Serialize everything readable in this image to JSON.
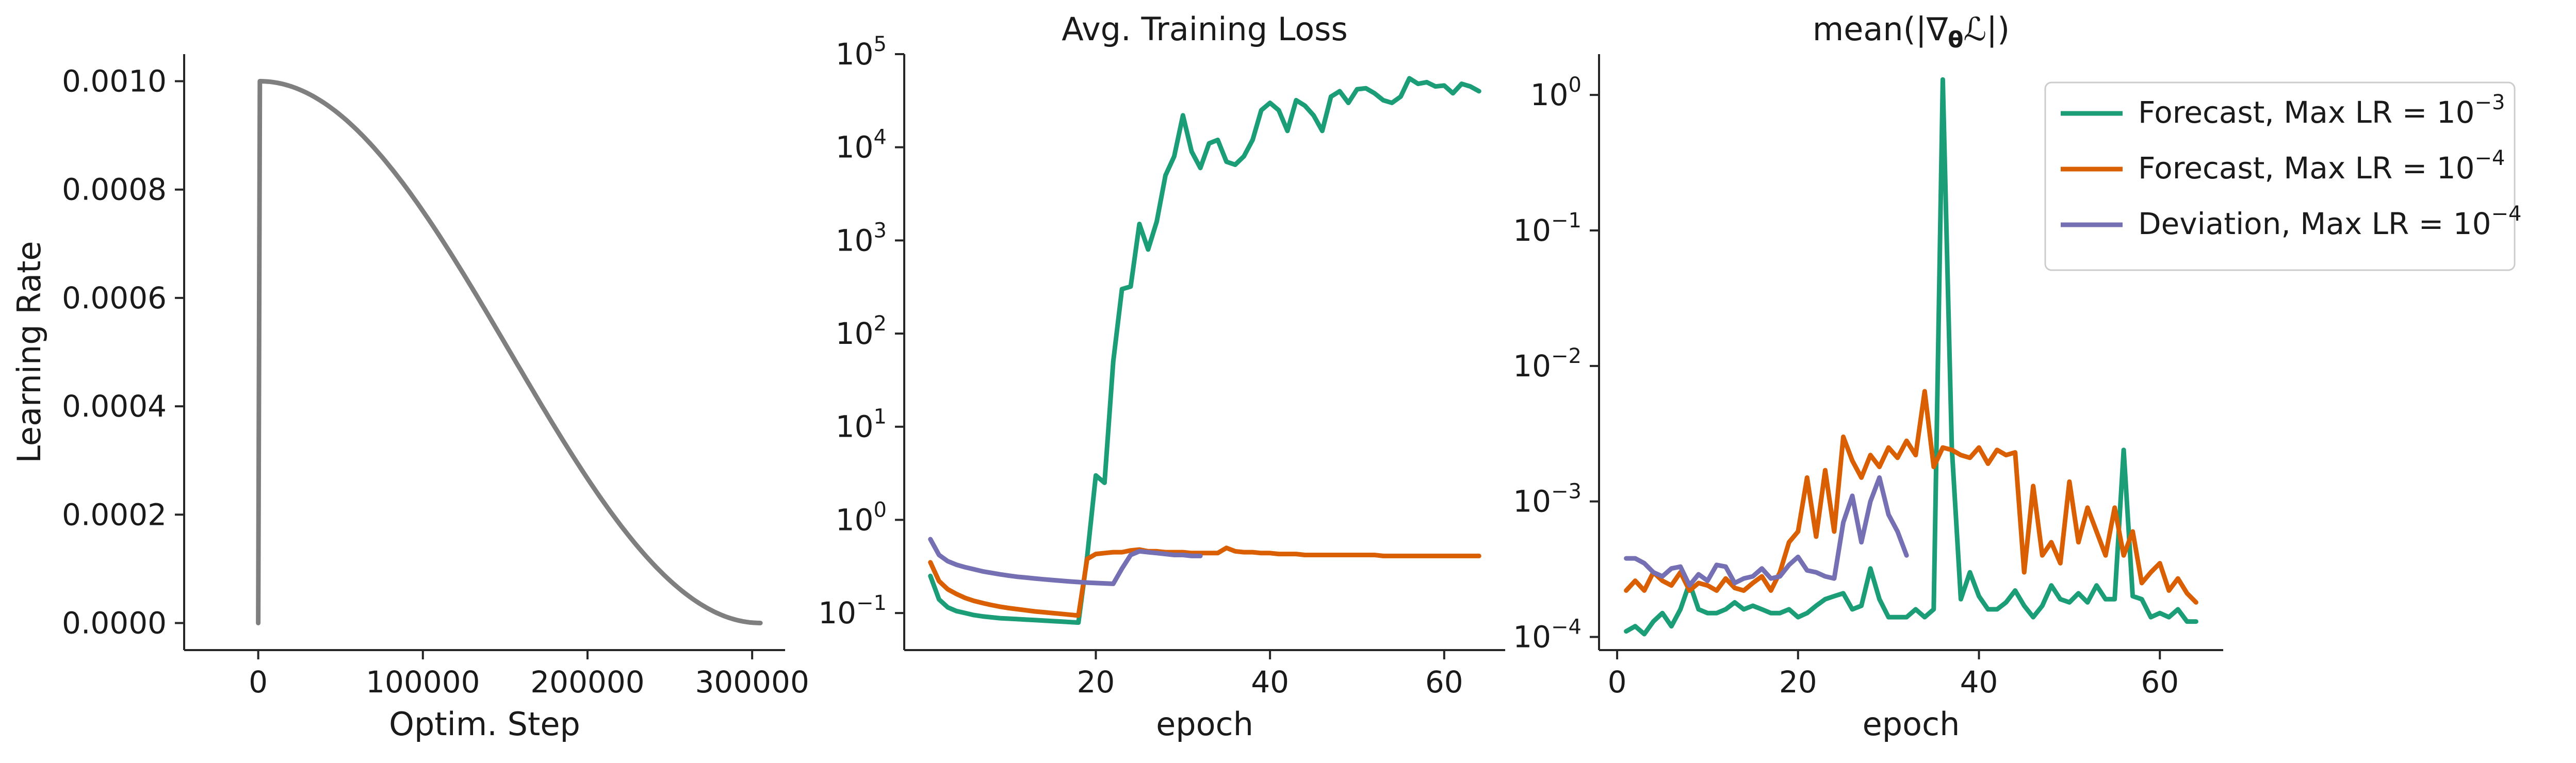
{
  "colors": {
    "lr": "#7f7f7f",
    "forecast_1e3": "#1b9e77",
    "forecast_1e4": "#d95f02",
    "deviation_1e4": "#7570b3"
  },
  "legend": {
    "entries": [
      {
        "prefix": "Forecast, Max LR = 10",
        "exp": "−3",
        "color": "#1b9e77"
      },
      {
        "prefix": "Forecast, Max LR = 10",
        "exp": "−4",
        "color": "#d95f02"
      },
      {
        "prefix": "Deviation, Max LR = 10",
        "exp": "−4",
        "color": "#7570b3"
      }
    ],
    "placement": "upper-right, outside third panel"
  },
  "chart_data": [
    {
      "type": "line",
      "title": "",
      "xlabel": "Optim. Step",
      "ylabel": "Learning Rate",
      "xlim": [
        -45000,
        320000
      ],
      "ylim": [
        -5e-05,
        0.00105
      ],
      "xticks": [
        0,
        100000,
        200000,
        300000
      ],
      "xtick_labels": [
        "0",
        "100000",
        "200000",
        "300000"
      ],
      "yticks": [
        0.0,
        0.0002,
        0.0004,
        0.0006,
        0.0008,
        0.001
      ],
      "ytick_labels": [
        "0.0000",
        "0.0002",
        "0.0004",
        "0.0006",
        "0.0008",
        "0.0010"
      ],
      "grid": false,
      "series": [
        {
          "color": "#7f7f7f",
          "schedule": "linear warmup then cosine decay",
          "warmup_end_step": 1000,
          "max_lr": 0.001,
          "total_steps": 305000
        }
      ]
    },
    {
      "type": "line",
      "title": "Avg. Training Loss",
      "xlabel": "epoch",
      "ylabel": "",
      "yscale": "log",
      "xlim": [
        -2,
        67
      ],
      "ylim": [
        0.04,
        100000
      ],
      "xticks": [
        20,
        40,
        60
      ],
      "xtick_labels": [
        "20",
        "40",
        "60"
      ],
      "yticks": [
        0.1,
        1,
        10,
        100,
        1000,
        10000,
        100000
      ],
      "ytick_labels": [
        {
          "base": "10",
          "exp": "−1"
        },
        {
          "base": "10",
          "exp": "0"
        },
        {
          "base": "10",
          "exp": "1"
        },
        {
          "base": "10",
          "exp": "2"
        },
        {
          "base": "10",
          "exp": "3"
        },
        {
          "base": "10",
          "exp": "4"
        },
        {
          "base": "10",
          "exp": "5"
        }
      ],
      "grid": false,
      "series": [
        {
          "name": "Forecast, Max LR = 10−3",
          "color": "#1b9e77",
          "x": [
            1,
            2,
            3,
            4,
            5,
            6,
            7,
            8,
            9,
            10,
            11,
            12,
            13,
            14,
            15,
            16,
            17,
            18,
            19,
            20,
            21,
            22,
            23,
            24,
            25,
            26,
            27,
            28,
            29,
            30,
            31,
            32,
            33,
            34,
            35,
            36,
            37,
            38,
            39,
            40,
            41,
            42,
            43,
            44,
            45,
            46,
            47,
            48,
            49,
            50,
            51,
            52,
            53,
            54,
            55,
            56,
            57,
            58,
            59,
            60,
            61,
            62,
            63,
            64
          ],
          "y": [
            0.25,
            0.14,
            0.115,
            0.105,
            0.1,
            0.095,
            0.092,
            0.09,
            0.088,
            0.087,
            0.086,
            0.085,
            0.084,
            0.083,
            0.082,
            0.081,
            0.08,
            0.079,
            0.4,
            3.0,
            2.5,
            50,
            300,
            320,
            1500,
            800,
            1600,
            5000,
            8000,
            22000,
            9000,
            6000,
            11000,
            12000,
            7000,
            6500,
            8000,
            12000,
            25000,
            30000,
            25000,
            15000,
            32000,
            28000,
            22000,
            15000,
            35000,
            40000,
            30000,
            42000,
            43000,
            38000,
            32000,
            30000,
            35000,
            55000,
            48000,
            50000,
            45000,
            46000,
            38000,
            48000,
            45000,
            40000
          ]
        },
        {
          "name": "Forecast, Max LR = 10−4",
          "color": "#d95f02",
          "x": [
            1,
            2,
            3,
            4,
            5,
            6,
            7,
            8,
            9,
            10,
            11,
            12,
            13,
            14,
            15,
            16,
            17,
            18,
            19,
            20,
            21,
            22,
            23,
            24,
            25,
            26,
            27,
            28,
            29,
            30,
            31,
            32,
            33,
            34,
            35,
            36,
            37,
            38,
            39,
            40,
            41,
            42,
            43,
            44,
            45,
            46,
            47,
            48,
            49,
            50,
            51,
            52,
            53,
            54,
            55,
            56,
            57,
            58,
            59,
            60,
            61,
            62,
            63,
            64
          ],
          "y": [
            0.35,
            0.22,
            0.18,
            0.16,
            0.145,
            0.135,
            0.128,
            0.122,
            0.117,
            0.113,
            0.11,
            0.107,
            0.104,
            0.102,
            0.1,
            0.098,
            0.096,
            0.094,
            0.38,
            0.43,
            0.44,
            0.45,
            0.45,
            0.47,
            0.48,
            0.46,
            0.46,
            0.45,
            0.45,
            0.45,
            0.44,
            0.44,
            0.44,
            0.44,
            0.5,
            0.46,
            0.45,
            0.45,
            0.44,
            0.44,
            0.43,
            0.43,
            0.43,
            0.42,
            0.42,
            0.42,
            0.42,
            0.42,
            0.42,
            0.42,
            0.42,
            0.42,
            0.41,
            0.41,
            0.41,
            0.41,
            0.41,
            0.41,
            0.41,
            0.41,
            0.41,
            0.41,
            0.41,
            0.41
          ]
        },
        {
          "name": "Deviation, Max LR = 10−4",
          "color": "#7570b3",
          "x": [
            1,
            2,
            3,
            4,
            5,
            6,
            7,
            8,
            9,
            10,
            11,
            12,
            13,
            14,
            15,
            16,
            17,
            18,
            19,
            20,
            21,
            22,
            23,
            24,
            25,
            26,
            27,
            28,
            29,
            30,
            31,
            32
          ],
          "y": [
            0.62,
            0.42,
            0.36,
            0.33,
            0.31,
            0.295,
            0.28,
            0.27,
            0.26,
            0.252,
            0.245,
            0.24,
            0.235,
            0.23,
            0.226,
            0.222,
            0.218,
            0.215,
            0.212,
            0.21,
            0.208,
            0.206,
            0.3,
            0.42,
            0.46,
            0.45,
            0.44,
            0.43,
            0.42,
            0.42,
            0.41,
            0.41
          ]
        }
      ]
    },
    {
      "type": "line",
      "title_prefix": "mean(|",
      "title_grad": "∇",
      "title_sub": "θ",
      "title_loss": "ℒ",
      "title_suffix": "|)",
      "xlabel": "epoch",
      "ylabel": "",
      "yscale": "log",
      "xlim": [
        -2,
        67
      ],
      "ylim": [
        8e-05,
        2
      ],
      "xticks": [
        0,
        20,
        40,
        60
      ],
      "xtick_labels": [
        "0",
        "20",
        "40",
        "60"
      ],
      "yticks": [
        0.0001,
        0.001,
        0.01,
        0.1,
        1
      ],
      "ytick_labels": [
        {
          "base": "10",
          "exp": "−4"
        },
        {
          "base": "10",
          "exp": "−3"
        },
        {
          "base": "10",
          "exp": "−2"
        },
        {
          "base": "10",
          "exp": "−1"
        },
        {
          "base": "10",
          "exp": "0"
        }
      ],
      "grid": false,
      "series": [
        {
          "name": "Forecast, Max LR = 10−3",
          "color": "#1b9e77",
          "x": [
            1,
            2,
            3,
            4,
            5,
            6,
            7,
            8,
            9,
            10,
            11,
            12,
            13,
            14,
            15,
            16,
            17,
            18,
            19,
            20,
            21,
            22,
            23,
            24,
            25,
            26,
            27,
            28,
            29,
            30,
            31,
            32,
            33,
            34,
            35,
            36,
            37,
            38,
            39,
            40,
            41,
            42,
            43,
            44,
            45,
            46,
            47,
            48,
            49,
            50,
            51,
            52,
            53,
            54,
            55,
            56,
            57,
            58,
            59,
            60,
            61,
            62,
            63,
            64
          ],
          "y": [
            0.00011,
            0.00012,
            0.000105,
            0.00013,
            0.00015,
            0.00012,
            0.00016,
            0.00025,
            0.00016,
            0.00015,
            0.00015,
            0.00016,
            0.00018,
            0.00016,
            0.00017,
            0.00016,
            0.00015,
            0.00015,
            0.00016,
            0.00014,
            0.00015,
            0.00017,
            0.00019,
            0.0002,
            0.00021,
            0.00016,
            0.00017,
            0.00032,
            0.00019,
            0.00014,
            0.00014,
            0.00014,
            0.00016,
            0.00014,
            0.00016,
            1.3,
            0.0025,
            0.00019,
            0.0003,
            0.0002,
            0.00016,
            0.00016,
            0.00018,
            0.00022,
            0.00017,
            0.00014,
            0.00017,
            0.00024,
            0.00019,
            0.00018,
            0.00021,
            0.00018,
            0.00024,
            0.00019,
            0.00019,
            0.0024,
            0.0002,
            0.00019,
            0.00014,
            0.00015,
            0.00014,
            0.00016,
            0.00013,
            0.00013
          ]
        },
        {
          "name": "Forecast, Max LR = 10−4",
          "color": "#d95f02",
          "x": [
            1,
            2,
            3,
            4,
            5,
            6,
            7,
            8,
            9,
            10,
            11,
            12,
            13,
            14,
            15,
            16,
            17,
            18,
            19,
            20,
            21,
            22,
            23,
            24,
            25,
            26,
            27,
            28,
            29,
            30,
            31,
            32,
            33,
            34,
            35,
            36,
            37,
            38,
            39,
            40,
            41,
            42,
            43,
            44,
            45,
            46,
            47,
            48,
            49,
            50,
            51,
            52,
            53,
            54,
            55,
            56,
            57,
            58,
            59,
            60,
            61,
            62,
            63,
            64
          ],
          "y": [
            0.00022,
            0.00026,
            0.00022,
            0.0003,
            0.00026,
            0.00024,
            0.0003,
            0.00022,
            0.00025,
            0.00024,
            0.00022,
            0.00027,
            0.00023,
            0.00022,
            0.00025,
            0.00028,
            0.00022,
            0.0003,
            0.0005,
            0.0006,
            0.0015,
            0.00055,
            0.0017,
            0.0006,
            0.003,
            0.002,
            0.0015,
            0.0022,
            0.0018,
            0.0025,
            0.0021,
            0.0028,
            0.0022,
            0.0065,
            0.0018,
            0.0025,
            0.0024,
            0.0022,
            0.0021,
            0.0025,
            0.0019,
            0.0024,
            0.0022,
            0.0023,
            0.0003,
            0.0013,
            0.0004,
            0.0005,
            0.00035,
            0.0014,
            0.0005,
            0.0009,
            0.0006,
            0.0004,
            0.0009,
            0.0004,
            0.0006,
            0.00025,
            0.0003,
            0.00035,
            0.00022,
            0.00027,
            0.00021,
            0.00018
          ]
        },
        {
          "name": "Deviation, Max LR = 10−4",
          "color": "#7570b3",
          "x": [
            1,
            2,
            3,
            4,
            5,
            6,
            7,
            8,
            9,
            10,
            11,
            12,
            13,
            14,
            15,
            16,
            17,
            18,
            19,
            20,
            21,
            22,
            23,
            24,
            25,
            26,
            27,
            28,
            29,
            30,
            31,
            32
          ],
          "y": [
            0.00038,
            0.00038,
            0.00035,
            0.0003,
            0.00028,
            0.00032,
            0.00033,
            0.00024,
            0.00029,
            0.00026,
            0.00034,
            0.00033,
            0.00025,
            0.00027,
            0.00028,
            0.00032,
            0.00027,
            0.00028,
            0.00034,
            0.00039,
            0.00031,
            0.0003,
            0.00028,
            0.00027,
            0.0007,
            0.0011,
            0.0005,
            0.001,
            0.0015,
            0.0008,
            0.0006,
            0.0004
          ]
        }
      ]
    }
  ]
}
